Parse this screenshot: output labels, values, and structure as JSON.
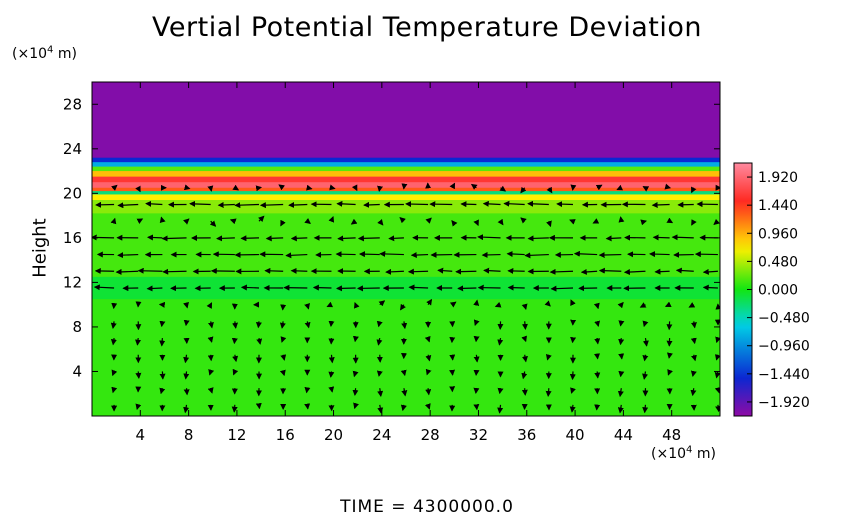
{
  "chart_data": {
    "type": "heatmap",
    "title": "Vertial Potential Temperature Deviation",
    "ylabel": "Height",
    "x_unit": "(×10⁴ m)",
    "y_unit": "(×10⁴ m)",
    "xlim": [
      0,
      52
    ],
    "ylim": [
      0,
      30
    ],
    "x_ticks": [
      4,
      8,
      12,
      16,
      20,
      24,
      28,
      32,
      36,
      40,
      44,
      48
    ],
    "y_ticks": [
      4,
      8,
      12,
      16,
      20,
      24,
      28
    ],
    "colorbar": {
      "ticks": [
        1.92,
        1.44,
        0.96,
        0.48,
        0.0,
        -0.48,
        -0.96,
        -1.44,
        -1.92
      ],
      "labels": [
        "1.920",
        "1.440",
        "0.960",
        "0.480",
        "0.000",
        "−0.480",
        "−0.960",
        "−1.440",
        "−1.920"
      ],
      "range": [
        -2.16,
        2.16
      ]
    },
    "field_layers": [
      {
        "y_from": 23.2,
        "y_to": 30.0,
        "value": -2.1
      },
      {
        "y_from": 22.8,
        "y_to": 23.2,
        "value": -1.5
      },
      {
        "y_from": 22.4,
        "y_to": 22.8,
        "value": -0.8
      },
      {
        "y_from": 22.0,
        "y_to": 22.4,
        "value": 0.2
      },
      {
        "y_from": 21.5,
        "y_to": 22.0,
        "value": 0.9
      },
      {
        "y_from": 21.0,
        "y_to": 21.5,
        "value": 1.6
      },
      {
        "y_from": 20.5,
        "y_to": 21.0,
        "value": 1.9
      },
      {
        "y_from": 20.2,
        "y_to": 20.5,
        "value": 1.3
      },
      {
        "y_from": 19.9,
        "y_to": 20.2,
        "value": -0.3
      },
      {
        "y_from": 19.4,
        "y_to": 19.9,
        "value": 0.7
      },
      {
        "y_from": 18.2,
        "y_to": 19.4,
        "value": 0.35
      },
      {
        "y_from": 12.5,
        "y_to": 18.2,
        "value": 0.15
      },
      {
        "y_from": 10.5,
        "y_to": 12.5,
        "value": -0.1
      },
      {
        "y_from": 0.0,
        "y_to": 10.5,
        "value": 0.1
      }
    ],
    "wind_jets": [
      {
        "y": 19.0,
        "direction": "left"
      },
      {
        "y": 16.2,
        "direction": "left"
      },
      {
        "y": 14.0,
        "direction": "left"
      },
      {
        "y": 13.0,
        "direction": "left"
      },
      {
        "y": 11.0,
        "direction": "left"
      }
    ],
    "colors": {
      "purple": "#8e0aa5",
      "blue": "#0a28d2",
      "cyan": "#00d2e6",
      "green": "#12e612",
      "yellow": "#fff000",
      "red": "#ff2820",
      "pink": "#ff8aa0"
    }
  },
  "footer": {
    "time_text": "TIME = 4300000.0"
  }
}
